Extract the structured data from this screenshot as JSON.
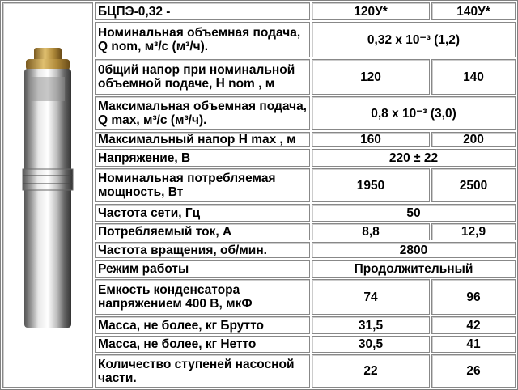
{
  "image": {
    "alt": "submersible-pump-photo"
  },
  "header": {
    "model": "БЦПЭ-0,32 -",
    "col1": "120У*",
    "col2": "140У*"
  },
  "rows": [
    {
      "label": "Номинальная объемная подача,  Q nom, м³/с (м³/ч).",
      "merged": "0,32  x 10⁻³ (1,2)"
    },
    {
      "label": "0бщий напор при номинальной объемной подаче, H nom , м",
      "v1": "120",
      "v2": "140"
    },
    {
      "label": " Максимальная объемная подача, Q max, м³/с (м³/ч).",
      "merged": "0,8  x 10⁻³ (3,0)"
    },
    {
      "label": " Максимальный напор H max , м",
      "v1": "160",
      "v2": "200"
    },
    {
      "label": " Напряжение,   В",
      "merged": "220 ± 22"
    },
    {
      "label": " Номинальная потребляемая мощность,   Вт",
      "v1": "1950",
      "v2": "2500"
    },
    {
      "label": "Частота сети,    Гц",
      "merged": "50"
    },
    {
      "label": "Потребляемый ток,   А",
      "v1": "8,8",
      "v2": "12,9"
    },
    {
      "label": "Частота вращения, об/мин.",
      "merged": "2800"
    },
    {
      "label": "Режим работы",
      "merged": "Продолжительный"
    },
    {
      "label": "Емкость конденсатора напряжением 400 В, мкФ",
      "v1": "74",
      "v2": "96"
    },
    {
      "label": "Масса, не более, кг Брутто",
      "v1": "31,5",
      "v2": "42"
    },
    {
      "label": "Масса, не более, кг Нетто",
      "v1": "30,5",
      "v2": "41"
    },
    {
      "label": "Количество ступеней насосной части.",
      "v1": "22",
      "v2": "26"
    }
  ]
}
